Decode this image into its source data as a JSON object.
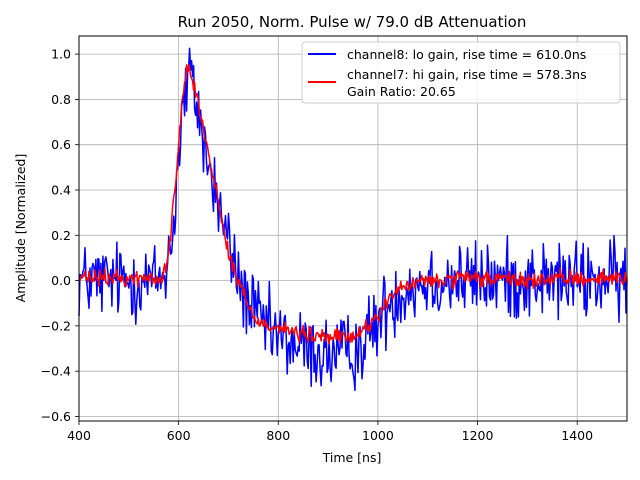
{
  "chart_data": {
    "type": "line",
    "title": "Run 2050, Norm. Pulse w/ 79.0 dB Attenuation",
    "xlabel": "Time [ns]",
    "ylabel": "Amplitude [Normalized]",
    "xlim": [
      400,
      1500
    ],
    "ylim": [
      -0.62,
      1.08
    ],
    "xticks": [
      400,
      600,
      800,
      1000,
      1200,
      1400
    ],
    "xtick_labels": [
      "400",
      "600",
      "800",
      "1000",
      "1200",
      "1400"
    ],
    "yticks": [
      -0.6,
      -0.4,
      -0.2,
      0.0,
      0.2,
      0.4,
      0.6,
      0.8,
      1.0
    ],
    "ytick_labels": [
      "−0.6",
      "−0.4",
      "−0.2",
      "0.0",
      "0.2",
      "0.4",
      "0.6",
      "0.8",
      "1.0"
    ],
    "grid": true,
    "legend_position": "top-right",
    "legend_extra_text": "Gain Ratio: 20.65",
    "series": [
      {
        "name": "channel8: lo gain, rise time = 610.0ns",
        "color": "#0000ff",
        "noise": 0.085,
        "x": [
          400,
          520,
          560,
          575,
          590,
          600,
          610,
          620,
          630,
          640,
          650,
          660,
          675,
          690,
          705,
          720,
          740,
          760,
          780,
          800,
          830,
          860,
          900,
          940,
          970,
          1000,
          1030,
          1060,
          1100,
          1150,
          1200,
          1300,
          1400,
          1500
        ],
        "values": [
          0.0,
          0.0,
          0.0,
          0.05,
          0.25,
          0.55,
          0.78,
          0.9,
          0.85,
          0.75,
          0.62,
          0.5,
          0.38,
          0.25,
          0.12,
          0.0,
          -0.1,
          -0.17,
          -0.22,
          -0.25,
          -0.28,
          -0.31,
          -0.33,
          -0.32,
          -0.28,
          -0.18,
          -0.08,
          -0.03,
          0.0,
          0.0,
          0.0,
          0.0,
          0.0,
          0.0
        ]
      },
      {
        "name": "channel7: hi gain, rise time = 578.3ns",
        "color": "#ff0000",
        "noise": 0.018,
        "x": [
          400,
          540,
          565,
          580,
          595,
          605,
          615,
          625,
          640,
          660,
          680,
          700,
          720,
          740,
          760,
          790,
          820,
          850,
          900,
          950,
          975,
          1000,
          1030,
          1070,
          1120,
          1200,
          1300,
          1400,
          1500
        ],
        "values": [
          0.01,
          0.01,
          0.0,
          0.12,
          0.45,
          0.75,
          0.95,
          0.93,
          0.78,
          0.55,
          0.35,
          0.12,
          0.0,
          -0.12,
          -0.18,
          -0.2,
          -0.22,
          -0.24,
          -0.25,
          -0.25,
          -0.21,
          -0.15,
          -0.06,
          -0.01,
          0.0,
          0.01,
          0.0,
          0.01,
          0.01
        ]
      }
    ]
  }
}
